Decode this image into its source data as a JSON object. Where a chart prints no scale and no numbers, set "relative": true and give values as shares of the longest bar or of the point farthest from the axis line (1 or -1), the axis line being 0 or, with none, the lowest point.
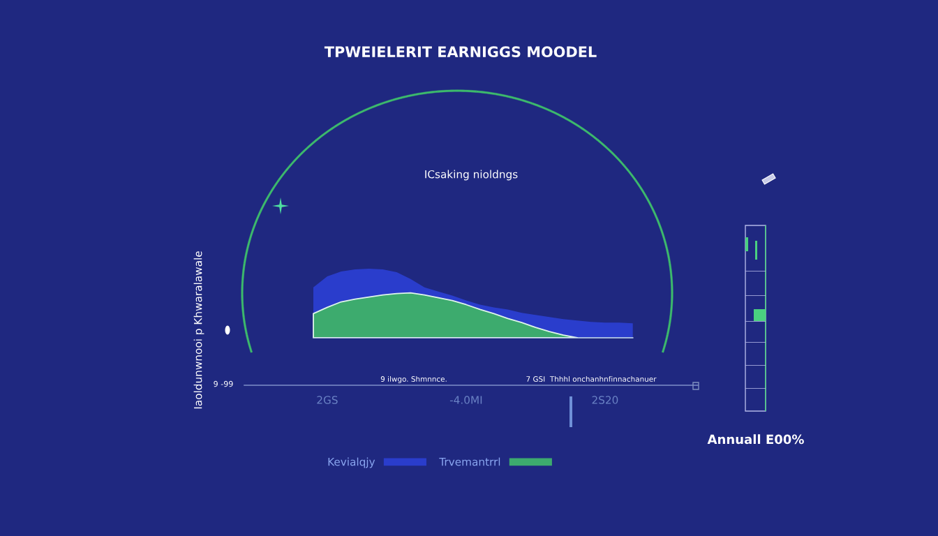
{
  "chart_data": {
    "type": "area",
    "title": "TPWEIELERIT EARNIGGS MOODEL",
    "subtitle": "ICsaking nioldngs",
    "relative": true,
    "legend": "bottom",
    "categories": [
      null,
      "2GS",
      null,
      null,
      null,
      null,
      null,
      null,
      null,
      null,
      null,
      "-4.0MI",
      null,
      null,
      null,
      null,
      null,
      null,
      null,
      null,
      null,
      "2S20",
      null,
      null
    ],
    "series": [
      {
        "name": "Kevialqjy",
        "color": "#2a3dcc",
        "values": [
          0.73,
          0.89,
          0.96,
          0.99,
          1.0,
          0.99,
          0.95,
          0.85,
          0.73,
          0.67,
          0.61,
          0.54,
          0.48,
          0.44,
          0.41,
          0.36,
          0.33,
          0.3,
          0.27,
          0.25,
          0.23,
          0.22,
          0.22,
          0.21
        ]
      },
      {
        "name": "Trvemantrrl",
        "color": "#3dab6e",
        "values": [
          0.35,
          0.44,
          0.52,
          0.56,
          0.59,
          0.62,
          0.64,
          0.65,
          0.62,
          0.58,
          0.54,
          0.48,
          0.41,
          0.35,
          0.28,
          0.22,
          0.15,
          0.09,
          0.04,
          0.0,
          null,
          null,
          null,
          null
        ]
      }
    ],
    "annotations": [
      "Iaoldunwnooi p Khwaralawale",
      "9 -99",
      "9 ilwgo. Shmnnce.",
      "7 GSI  Thhhl onchanhnfinnachanuer",
      "Annuall E00%"
    ]
  }
}
